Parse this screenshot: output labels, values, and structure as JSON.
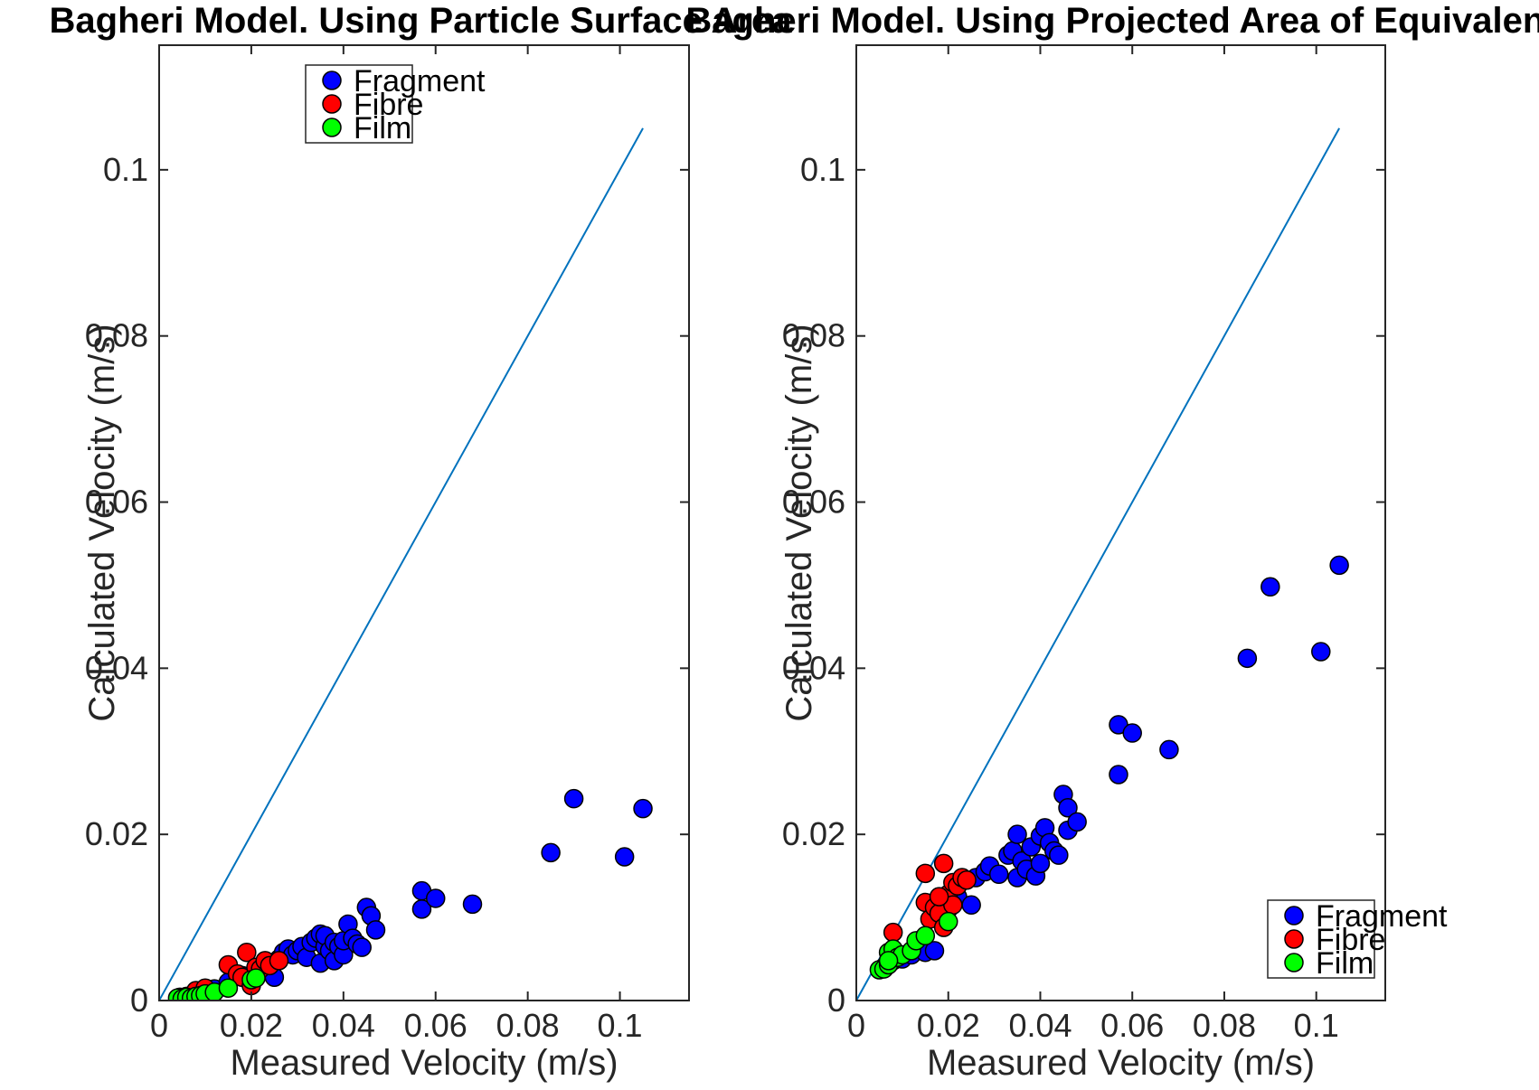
{
  "chart_data": [
    {
      "type": "scatter",
      "title": "Bagheri Model. Using Particle Surface Area",
      "xlabel": "Measured Velocity (m/s)",
      "ylabel": "Calculated Velocity (m/s)",
      "xlim": [
        0,
        0.115
      ],
      "ylim": [
        0,
        0.115
      ],
      "xticks": [
        "0",
        "0.02",
        "0.04",
        "0.06",
        "0.08",
        "0.1"
      ],
      "yticks": [
        "0",
        "0.02",
        "0.04",
        "0.06",
        "0.08",
        "0.1"
      ],
      "grid": false,
      "legend_position": "top-center",
      "reference_line": {
        "x": [
          0,
          0.105
        ],
        "y": [
          0,
          0.105
        ],
        "color": "#0072BD"
      },
      "series": [
        {
          "name": "Fragment",
          "color": "#0000FF",
          "points": [
            [
              0.0045,
              0.0004
            ],
            [
              0.006,
              0.0005
            ],
            [
              0.008,
              0.0009
            ],
            [
              0.009,
              0.001
            ],
            [
              0.01,
              0.0012
            ],
            [
              0.012,
              0.0014
            ],
            [
              0.015,
              0.0022
            ],
            [
              0.018,
              0.003
            ],
            [
              0.021,
              0.0035
            ],
            [
              0.025,
              0.0028
            ],
            [
              0.026,
              0.005
            ],
            [
              0.027,
              0.0058
            ],
            [
              0.028,
              0.0062
            ],
            [
              0.029,
              0.0055
            ],
            [
              0.03,
              0.006
            ],
            [
              0.031,
              0.0065
            ],
            [
              0.032,
              0.0052
            ],
            [
              0.033,
              0.007
            ],
            [
              0.034,
              0.0075
            ],
            [
              0.035,
              0.008
            ],
            [
              0.035,
              0.0045
            ],
            [
              0.036,
              0.0065
            ],
            [
              0.036,
              0.0078
            ],
            [
              0.037,
              0.006
            ],
            [
              0.038,
              0.0048
            ],
            [
              0.038,
              0.007
            ],
            [
              0.039,
              0.0065
            ],
            [
              0.04,
              0.0055
            ],
            [
              0.04,
              0.0072
            ],
            [
              0.041,
              0.0092
            ],
            [
              0.042,
              0.0075
            ],
            [
              0.043,
              0.0068
            ],
            [
              0.044,
              0.0064
            ],
            [
              0.045,
              0.0112
            ],
            [
              0.046,
              0.0102
            ],
            [
              0.047,
              0.0085
            ],
            [
              0.057,
              0.0132
            ],
            [
              0.057,
              0.011
            ],
            [
              0.06,
              0.0123
            ],
            [
              0.068,
              0.0116
            ],
            [
              0.085,
              0.0178
            ],
            [
              0.09,
              0.0243
            ],
            [
              0.101,
              0.0173
            ],
            [
              0.105,
              0.0231
            ]
          ]
        },
        {
          "name": "Fibre",
          "color": "#FF0000",
          "points": [
            [
              0.015,
              0.0043
            ],
            [
              0.017,
              0.0032
            ],
            [
              0.018,
              0.0028
            ],
            [
              0.019,
              0.0058
            ],
            [
              0.02,
              0.0018
            ],
            [
              0.021,
              0.004
            ],
            [
              0.022,
              0.0038
            ],
            [
              0.023,
              0.0048
            ],
            [
              0.024,
              0.0042
            ],
            [
              0.026,
              0.0048
            ],
            [
              0.008,
              0.0012
            ],
            [
              0.01,
              0.0015
            ]
          ]
        },
        {
          "name": "Film",
          "color": "#00FF00",
          "points": [
            [
              0.004,
              0.0003
            ],
            [
              0.005,
              0.0002
            ],
            [
              0.006,
              0.0004
            ],
            [
              0.007,
              0.0003
            ],
            [
              0.008,
              0.0005
            ],
            [
              0.009,
              0.0006
            ],
            [
              0.01,
              0.0008
            ],
            [
              0.012,
              0.001
            ],
            [
              0.015,
              0.0015
            ],
            [
              0.02,
              0.0025
            ],
            [
              0.021,
              0.0027
            ]
          ]
        }
      ]
    },
    {
      "type": "scatter",
      "title": "Bagheri Model. Using Projected Area of Equivalent",
      "xlabel": "Measured Velocity (m/s)",
      "ylabel": "Calculated Velocity (m/s)",
      "xlim": [
        0,
        0.115
      ],
      "ylim": [
        0,
        0.115
      ],
      "xticks": [
        "0",
        "0.02",
        "0.04",
        "0.06",
        "0.08",
        "0.1"
      ],
      "yticks": [
        "0",
        "0.02",
        "0.04",
        "0.06",
        "0.08",
        "0.1"
      ],
      "grid": false,
      "legend_position": "bottom-right",
      "reference_line": {
        "x": [
          0,
          0.105
        ],
        "y": [
          0,
          0.105
        ],
        "color": "#0072BD"
      },
      "series": [
        {
          "name": "Fragment",
          "color": "#0000FF",
          "points": [
            [
              0.006,
              0.004
            ],
            [
              0.008,
              0.0048
            ],
            [
              0.01,
              0.005
            ],
            [
              0.012,
              0.0055
            ],
            [
              0.015,
              0.0058
            ],
            [
              0.017,
              0.006
            ],
            [
              0.02,
              0.011
            ],
            [
              0.022,
              0.0125
            ],
            [
              0.025,
              0.0115
            ],
            [
              0.026,
              0.0148
            ],
            [
              0.028,
              0.0155
            ],
            [
              0.029,
              0.0162
            ],
            [
              0.031,
              0.0152
            ],
            [
              0.033,
              0.0175
            ],
            [
              0.034,
              0.018
            ],
            [
              0.035,
              0.0148
            ],
            [
              0.035,
              0.02
            ],
            [
              0.036,
              0.0168
            ],
            [
              0.037,
              0.0158
            ],
            [
              0.038,
              0.0185
            ],
            [
              0.039,
              0.015
            ],
            [
              0.04,
              0.0165
            ],
            [
              0.04,
              0.0198
            ],
            [
              0.041,
              0.0208
            ],
            [
              0.042,
              0.019
            ],
            [
              0.043,
              0.018
            ],
            [
              0.044,
              0.0175
            ],
            [
              0.045,
              0.0248
            ],
            [
              0.046,
              0.0232
            ],
            [
              0.046,
              0.0205
            ],
            [
              0.048,
              0.0215
            ],
            [
              0.057,
              0.0332
            ],
            [
              0.057,
              0.0272
            ],
            [
              0.06,
              0.0322
            ],
            [
              0.068,
              0.0302
            ],
            [
              0.085,
              0.0412
            ],
            [
              0.09,
              0.0498
            ],
            [
              0.101,
              0.042
            ],
            [
              0.105,
              0.0524
            ]
          ]
        },
        {
          "name": "Fibre",
          "color": "#FF0000",
          "points": [
            [
              0.008,
              0.0082
            ],
            [
              0.015,
              0.0153
            ],
            [
              0.015,
              0.0118
            ],
            [
              0.016,
              0.0098
            ],
            [
              0.017,
              0.0112
            ],
            [
              0.018,
              0.0105
            ],
            [
              0.019,
              0.0165
            ],
            [
              0.019,
              0.0088
            ],
            [
              0.02,
              0.0128
            ],
            [
              0.021,
              0.0115
            ],
            [
              0.021,
              0.0142
            ],
            [
              0.022,
              0.0138
            ],
            [
              0.023,
              0.0148
            ],
            [
              0.024,
              0.0145
            ],
            [
              0.018,
              0.0125
            ]
          ]
        },
        {
          "name": "Film",
          "color": "#00FF00",
          "points": [
            [
              0.005,
              0.0037
            ],
            [
              0.006,
              0.0038
            ],
            [
              0.007,
              0.0043
            ],
            [
              0.007,
              0.0058
            ],
            [
              0.008,
              0.0062
            ],
            [
              0.009,
              0.0052
            ],
            [
              0.01,
              0.0055
            ],
            [
              0.012,
              0.006
            ],
            [
              0.013,
              0.0072
            ],
            [
              0.015,
              0.0078
            ],
            [
              0.02,
              0.0095
            ],
            [
              0.007,
              0.0048
            ]
          ]
        }
      ]
    }
  ]
}
